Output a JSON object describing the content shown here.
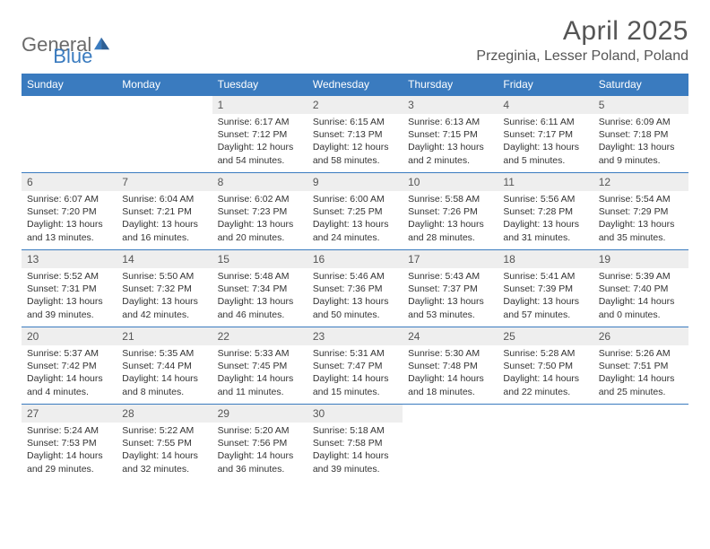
{
  "logo": {
    "part1": "General",
    "part2": "Blue",
    "triangle_color": "#3a7bbf"
  },
  "title": "April 2025",
  "location": "Przeginia, Lesser Poland, Poland",
  "colors": {
    "header_bg": "#3a7bbf",
    "header_text": "#ffffff",
    "daynum_bg": "#eeeeee",
    "border": "#3a7bbf",
    "body_text": "#333333",
    "title_text": "#555555"
  },
  "daysOfWeek": [
    "Sunday",
    "Monday",
    "Tuesday",
    "Wednesday",
    "Thursday",
    "Friday",
    "Saturday"
  ],
  "startOffset": 2,
  "cells": [
    {
      "n": "1",
      "sr": "6:17 AM",
      "ss": "7:12 PM",
      "dl": "12 hours and 54 minutes."
    },
    {
      "n": "2",
      "sr": "6:15 AM",
      "ss": "7:13 PM",
      "dl": "12 hours and 58 minutes."
    },
    {
      "n": "3",
      "sr": "6:13 AM",
      "ss": "7:15 PM",
      "dl": "13 hours and 2 minutes."
    },
    {
      "n": "4",
      "sr": "6:11 AM",
      "ss": "7:17 PM",
      "dl": "13 hours and 5 minutes."
    },
    {
      "n": "5",
      "sr": "6:09 AM",
      "ss": "7:18 PM",
      "dl": "13 hours and 9 minutes."
    },
    {
      "n": "6",
      "sr": "6:07 AM",
      "ss": "7:20 PM",
      "dl": "13 hours and 13 minutes."
    },
    {
      "n": "7",
      "sr": "6:04 AM",
      "ss": "7:21 PM",
      "dl": "13 hours and 16 minutes."
    },
    {
      "n": "8",
      "sr": "6:02 AM",
      "ss": "7:23 PM",
      "dl": "13 hours and 20 minutes."
    },
    {
      "n": "9",
      "sr": "6:00 AM",
      "ss": "7:25 PM",
      "dl": "13 hours and 24 minutes."
    },
    {
      "n": "10",
      "sr": "5:58 AM",
      "ss": "7:26 PM",
      "dl": "13 hours and 28 minutes."
    },
    {
      "n": "11",
      "sr": "5:56 AM",
      "ss": "7:28 PM",
      "dl": "13 hours and 31 minutes."
    },
    {
      "n": "12",
      "sr": "5:54 AM",
      "ss": "7:29 PM",
      "dl": "13 hours and 35 minutes."
    },
    {
      "n": "13",
      "sr": "5:52 AM",
      "ss": "7:31 PM",
      "dl": "13 hours and 39 minutes."
    },
    {
      "n": "14",
      "sr": "5:50 AM",
      "ss": "7:32 PM",
      "dl": "13 hours and 42 minutes."
    },
    {
      "n": "15",
      "sr": "5:48 AM",
      "ss": "7:34 PM",
      "dl": "13 hours and 46 minutes."
    },
    {
      "n": "16",
      "sr": "5:46 AM",
      "ss": "7:36 PM",
      "dl": "13 hours and 50 minutes."
    },
    {
      "n": "17",
      "sr": "5:43 AM",
      "ss": "7:37 PM",
      "dl": "13 hours and 53 minutes."
    },
    {
      "n": "18",
      "sr": "5:41 AM",
      "ss": "7:39 PM",
      "dl": "13 hours and 57 minutes."
    },
    {
      "n": "19",
      "sr": "5:39 AM",
      "ss": "7:40 PM",
      "dl": "14 hours and 0 minutes."
    },
    {
      "n": "20",
      "sr": "5:37 AM",
      "ss": "7:42 PM",
      "dl": "14 hours and 4 minutes."
    },
    {
      "n": "21",
      "sr": "5:35 AM",
      "ss": "7:44 PM",
      "dl": "14 hours and 8 minutes."
    },
    {
      "n": "22",
      "sr": "5:33 AM",
      "ss": "7:45 PM",
      "dl": "14 hours and 11 minutes."
    },
    {
      "n": "23",
      "sr": "5:31 AM",
      "ss": "7:47 PM",
      "dl": "14 hours and 15 minutes."
    },
    {
      "n": "24",
      "sr": "5:30 AM",
      "ss": "7:48 PM",
      "dl": "14 hours and 18 minutes."
    },
    {
      "n": "25",
      "sr": "5:28 AM",
      "ss": "7:50 PM",
      "dl": "14 hours and 22 minutes."
    },
    {
      "n": "26",
      "sr": "5:26 AM",
      "ss": "7:51 PM",
      "dl": "14 hours and 25 minutes."
    },
    {
      "n": "27",
      "sr": "5:24 AM",
      "ss": "7:53 PM",
      "dl": "14 hours and 29 minutes."
    },
    {
      "n": "28",
      "sr": "5:22 AM",
      "ss": "7:55 PM",
      "dl": "14 hours and 32 minutes."
    },
    {
      "n": "29",
      "sr": "5:20 AM",
      "ss": "7:56 PM",
      "dl": "14 hours and 36 minutes."
    },
    {
      "n": "30",
      "sr": "5:18 AM",
      "ss": "7:58 PM",
      "dl": "14 hours and 39 minutes."
    }
  ],
  "labels": {
    "sunrise": "Sunrise:",
    "sunset": "Sunset:",
    "daylight": "Daylight:"
  }
}
